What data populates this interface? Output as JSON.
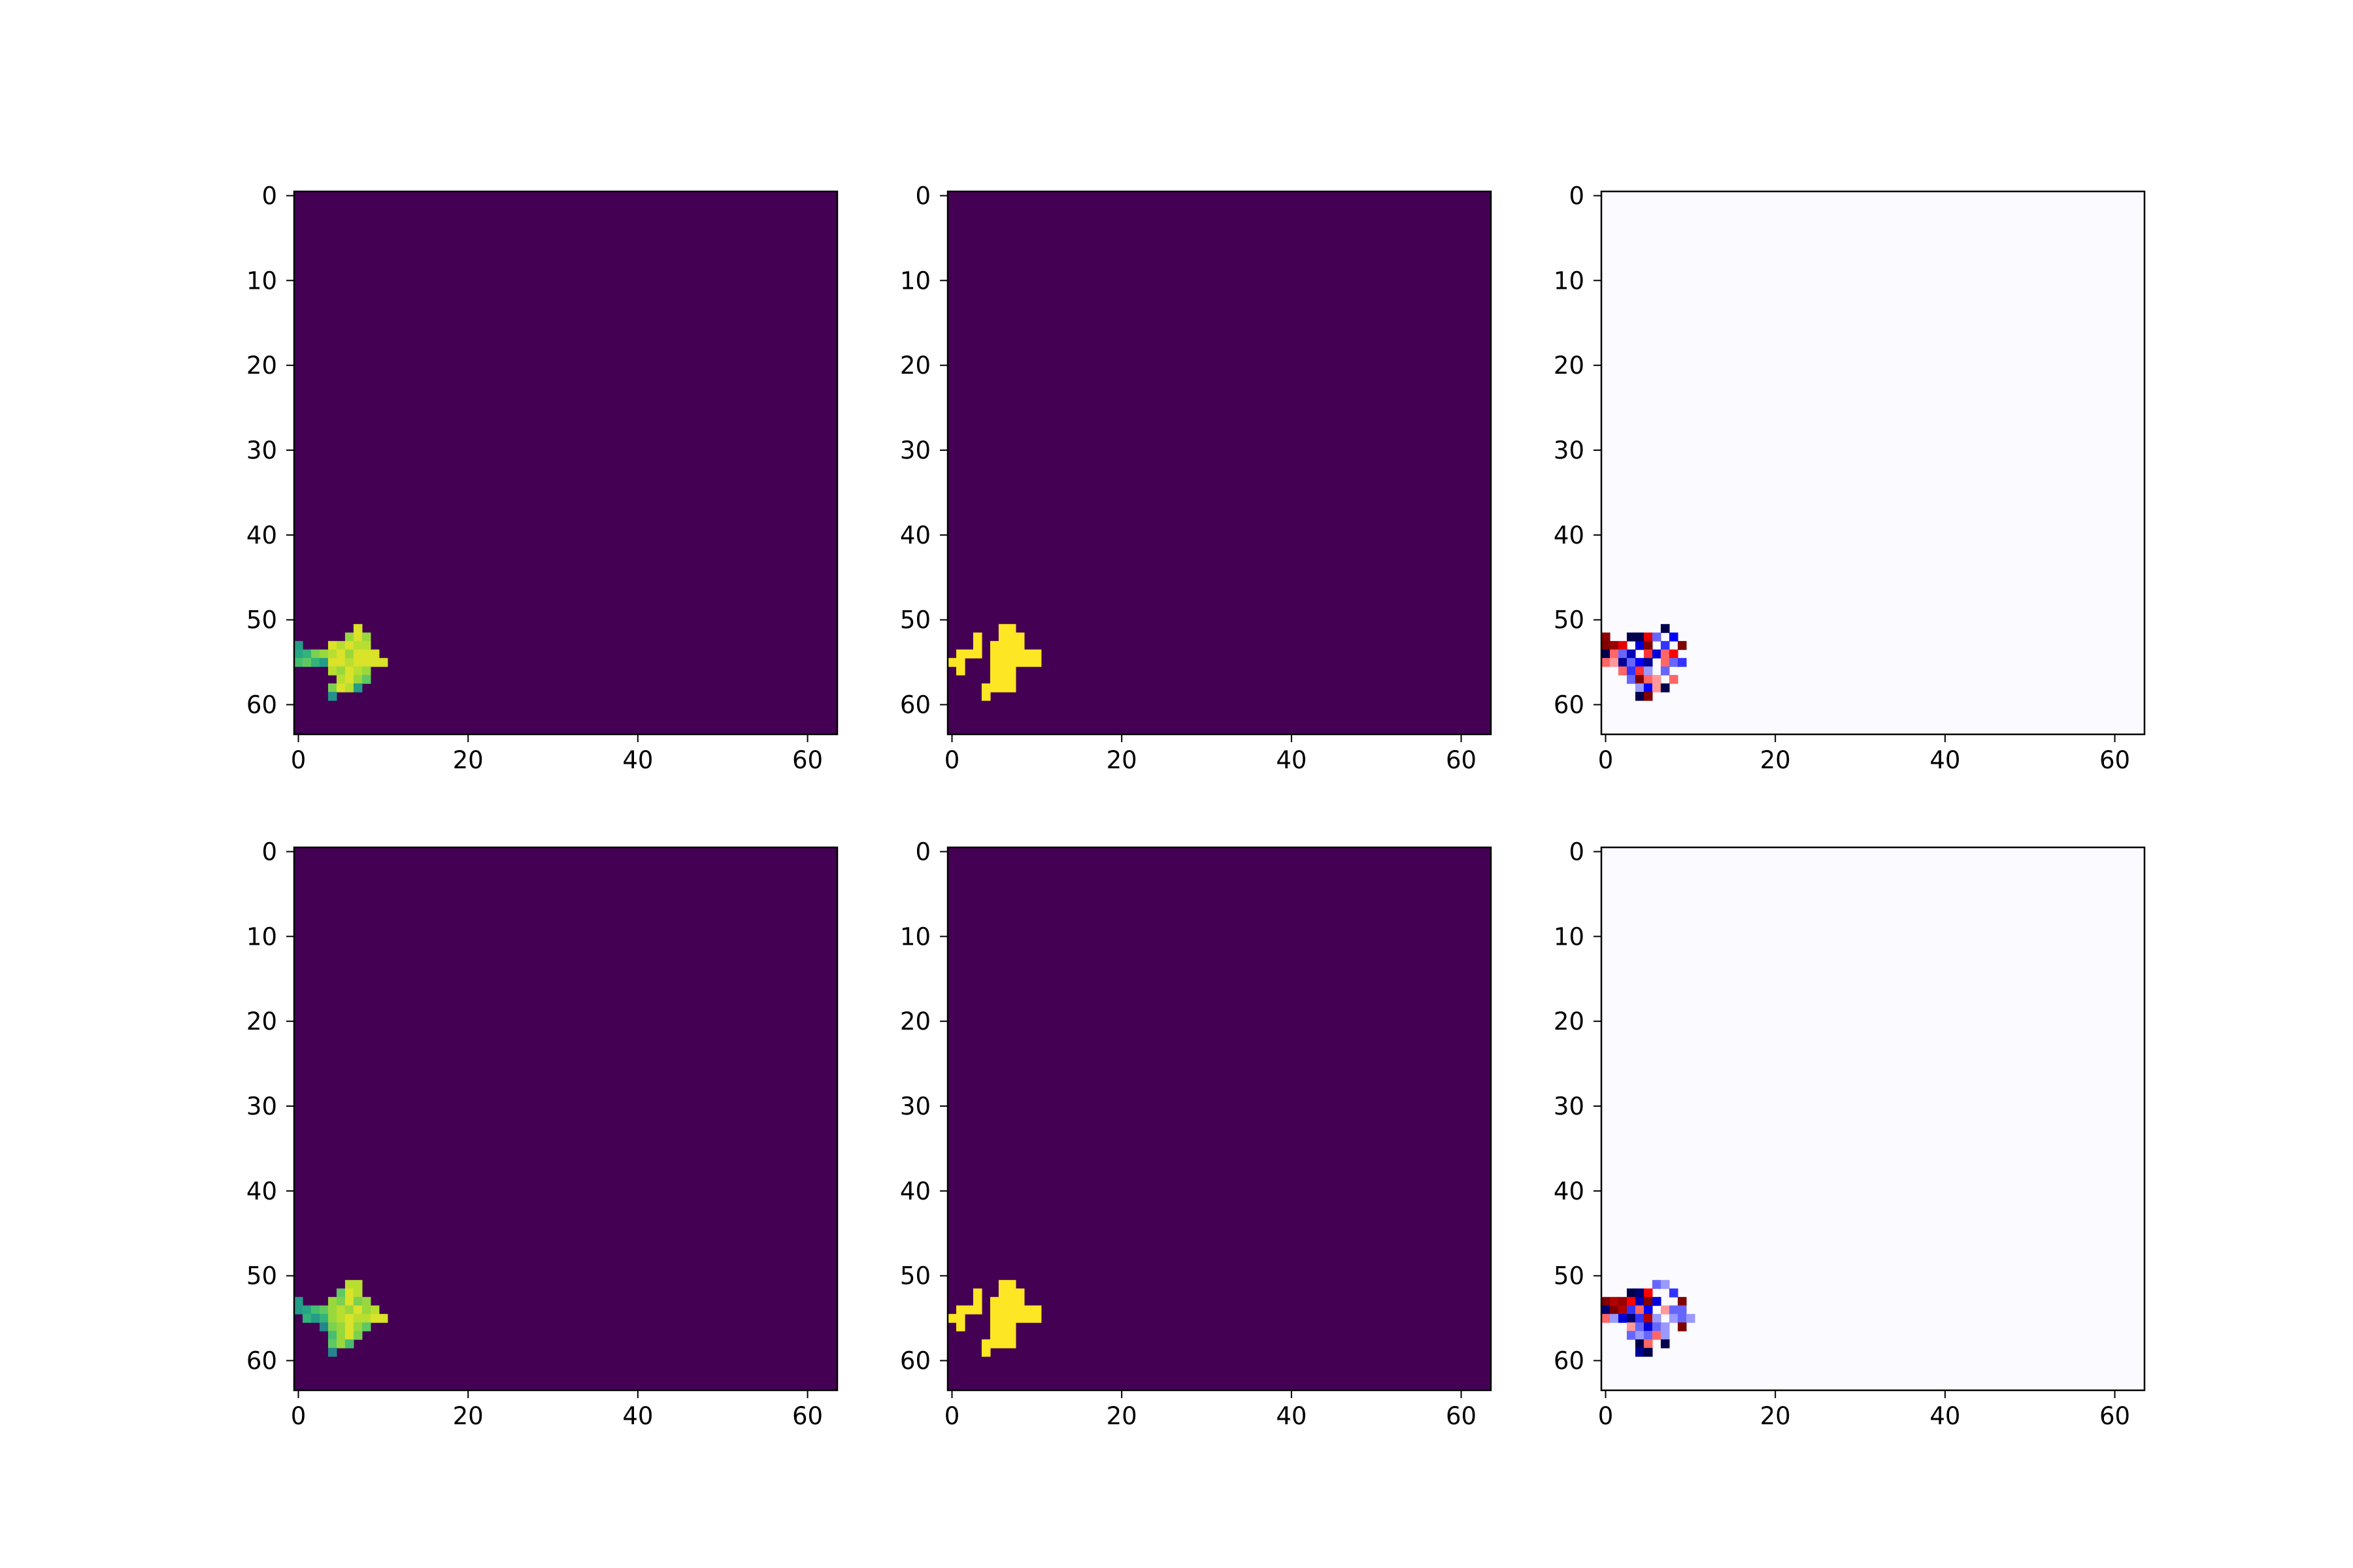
{
  "figure": {
    "rows": 2,
    "cols": 3,
    "background": "#ffffff"
  },
  "chart_data": [
    {
      "type": "heatmap",
      "panel": "row1-col1",
      "colormap": "viridis",
      "grid_size": [
        64,
        64
      ],
      "xlim": [
        -0.5,
        63.5
      ],
      "ylim": [
        63.5,
        -0.5
      ],
      "xticks": [
        "0",
        "20",
        "40",
        "60"
      ],
      "yticks": [
        "0",
        "10",
        "20",
        "30",
        "40",
        "50",
        "60"
      ],
      "background_value": 0,
      "cells": [
        [
          51,
          7,
          0.95
        ],
        [
          52,
          6,
          0.85
        ],
        [
          52,
          7,
          0.95
        ],
        [
          52,
          8,
          0.85
        ],
        [
          53,
          0,
          0.55
        ],
        [
          53,
          4,
          0.95
        ],
        [
          53,
          5,
          0.9
        ],
        [
          53,
          6,
          0.95
        ],
        [
          53,
          7,
          0.9
        ],
        [
          53,
          8,
          0.9
        ],
        [
          54,
          0,
          0.6
        ],
        [
          54,
          1,
          0.65
        ],
        [
          54,
          2,
          0.8
        ],
        [
          54,
          3,
          0.85
        ],
        [
          54,
          4,
          0.9
        ],
        [
          54,
          5,
          0.95
        ],
        [
          54,
          6,
          0.85
        ],
        [
          54,
          7,
          0.95
        ],
        [
          54,
          8,
          0.95
        ],
        [
          54,
          9,
          0.95
        ],
        [
          55,
          0,
          0.7
        ],
        [
          55,
          1,
          0.75
        ],
        [
          55,
          2,
          0.65
        ],
        [
          55,
          3,
          0.55
        ],
        [
          55,
          4,
          0.95
        ],
        [
          55,
          5,
          0.95
        ],
        [
          55,
          6,
          0.9
        ],
        [
          55,
          7,
          0.95
        ],
        [
          55,
          8,
          0.95
        ],
        [
          55,
          9,
          0.95
        ],
        [
          55,
          10,
          0.95
        ],
        [
          56,
          4,
          0.9
        ],
        [
          56,
          5,
          0.85
        ],
        [
          56,
          6,
          0.95
        ],
        [
          56,
          7,
          0.9
        ],
        [
          56,
          8,
          0.85
        ],
        [
          57,
          5,
          0.9
        ],
        [
          57,
          6,
          0.95
        ],
        [
          57,
          7,
          0.85
        ],
        [
          57,
          8,
          0.75
        ],
        [
          58,
          4,
          0.8
        ],
        [
          58,
          5,
          0.95
        ],
        [
          58,
          6,
          0.9
        ],
        [
          58,
          7,
          0.55
        ],
        [
          59,
          4,
          0.5
        ]
      ]
    },
    {
      "type": "heatmap",
      "panel": "row1-col2",
      "colormap": "viridis",
      "grid_size": [
        64,
        64
      ],
      "xlim": [
        -0.5,
        63.5
      ],
      "ylim": [
        63.5,
        -0.5
      ],
      "xticks": [
        "0",
        "20",
        "40",
        "60"
      ],
      "yticks": [
        "0",
        "10",
        "20",
        "30",
        "40",
        "50",
        "60"
      ],
      "background_value": 0,
      "cells": [
        [
          51,
          6,
          1
        ],
        [
          51,
          7,
          1
        ],
        [
          52,
          3,
          1
        ],
        [
          52,
          6,
          1
        ],
        [
          52,
          7,
          1
        ],
        [
          52,
          8,
          1
        ],
        [
          53,
          3,
          1
        ],
        [
          53,
          5,
          1
        ],
        [
          53,
          6,
          1
        ],
        [
          53,
          7,
          1
        ],
        [
          53,
          8,
          1
        ],
        [
          54,
          1,
          1
        ],
        [
          54,
          2,
          1
        ],
        [
          54,
          3,
          1
        ],
        [
          54,
          5,
          1
        ],
        [
          54,
          6,
          1
        ],
        [
          54,
          7,
          1
        ],
        [
          54,
          8,
          1
        ],
        [
          54,
          9,
          1
        ],
        [
          54,
          10,
          1
        ],
        [
          55,
          0,
          1
        ],
        [
          55,
          1,
          1
        ],
        [
          55,
          5,
          1
        ],
        [
          55,
          6,
          1
        ],
        [
          55,
          7,
          1
        ],
        [
          55,
          8,
          1
        ],
        [
          55,
          9,
          1
        ],
        [
          55,
          10,
          1
        ],
        [
          56,
          1,
          1
        ],
        [
          56,
          5,
          1
        ],
        [
          56,
          6,
          1
        ],
        [
          56,
          7,
          1
        ],
        [
          57,
          5,
          1
        ],
        [
          57,
          6,
          1
        ],
        [
          57,
          7,
          1
        ],
        [
          58,
          4,
          1
        ],
        [
          58,
          5,
          1
        ],
        [
          58,
          6,
          1
        ],
        [
          58,
          7,
          1
        ],
        [
          59,
          4,
          1
        ]
      ]
    },
    {
      "type": "heatmap",
      "panel": "row1-col3",
      "colormap": "seismic",
      "grid_size": [
        64,
        64
      ],
      "xlim": [
        -0.5,
        63.5
      ],
      "ylim": [
        63.5,
        -0.5
      ],
      "xticks": [
        "0",
        "20",
        "40",
        "60"
      ],
      "yticks": [
        "0",
        "10",
        "20",
        "30",
        "40",
        "50",
        "60"
      ],
      "background_value": -0.01,
      "cells": [
        [
          51,
          7,
          -1
        ],
        [
          52,
          0,
          0.95
        ],
        [
          52,
          3,
          -1
        ],
        [
          52,
          4,
          -1
        ],
        [
          52,
          5,
          0.6
        ],
        [
          52,
          6,
          -0.3
        ],
        [
          52,
          8,
          -0.5
        ],
        [
          53,
          0,
          1
        ],
        [
          53,
          1,
          0.9
        ],
        [
          53,
          2,
          0.6
        ],
        [
          53,
          4,
          -0.6
        ],
        [
          53,
          5,
          1
        ],
        [
          53,
          7,
          -0.4
        ],
        [
          53,
          9,
          1
        ],
        [
          54,
          0,
          -1
        ],
        [
          54,
          1,
          0.3
        ],
        [
          54,
          2,
          -0.3
        ],
        [
          54,
          3,
          -0.7
        ],
        [
          54,
          5,
          0.4
        ],
        [
          54,
          6,
          -0.6
        ],
        [
          54,
          7,
          0.3
        ],
        [
          54,
          8,
          0.5
        ],
        [
          55,
          0,
          0.3
        ],
        [
          55,
          1,
          0.2
        ],
        [
          55,
          2,
          -0.8
        ],
        [
          55,
          3,
          -0.3
        ],
        [
          55,
          4,
          -0.5
        ],
        [
          55,
          5,
          -0.8
        ],
        [
          55,
          7,
          0.3
        ],
        [
          55,
          8,
          -0.3
        ],
        [
          55,
          9,
          -0.4
        ],
        [
          56,
          2,
          0.3
        ],
        [
          56,
          3,
          -0.4
        ],
        [
          56,
          4,
          0.4
        ],
        [
          56,
          5,
          -0.2
        ],
        [
          56,
          7,
          -0.3
        ],
        [
          57,
          3,
          -0.3
        ],
        [
          57,
          4,
          1
        ],
        [
          57,
          5,
          0.3
        ],
        [
          57,
          6,
          0.2
        ],
        [
          57,
          8,
          0.3
        ],
        [
          58,
          4,
          -0.2
        ],
        [
          58,
          5,
          -0.5
        ],
        [
          58,
          6,
          0.2
        ],
        [
          58,
          7,
          -1
        ],
        [
          59,
          4,
          -1
        ],
        [
          59,
          5,
          1
        ]
      ]
    },
    {
      "type": "heatmap",
      "panel": "row2-col1",
      "colormap": "viridis",
      "grid_size": [
        64,
        64
      ],
      "xlim": [
        -0.5,
        63.5
      ],
      "ylim": [
        63.5,
        -0.5
      ],
      "xticks": [
        "0",
        "20",
        "40",
        "60"
      ],
      "yticks": [
        "0",
        "10",
        "20",
        "30",
        "40",
        "50",
        "60"
      ],
      "background_value": 0,
      "cells": [
        [
          51,
          6,
          0.9
        ],
        [
          51,
          7,
          0.9
        ],
        [
          52,
          5,
          0.75
        ],
        [
          52,
          6,
          0.95
        ],
        [
          52,
          7,
          0.9
        ],
        [
          53,
          0,
          0.55
        ],
        [
          53,
          4,
          0.85
        ],
        [
          53,
          5,
          0.8
        ],
        [
          53,
          6,
          0.95
        ],
        [
          53,
          7,
          0.8
        ],
        [
          53,
          8,
          0.85
        ],
        [
          54,
          0,
          0.55
        ],
        [
          54,
          1,
          0.6
        ],
        [
          54,
          2,
          0.7
        ],
        [
          54,
          3,
          0.75
        ],
        [
          54,
          4,
          0.85
        ],
        [
          54,
          5,
          0.9
        ],
        [
          54,
          6,
          0.85
        ],
        [
          54,
          7,
          0.95
        ],
        [
          54,
          8,
          0.85
        ],
        [
          54,
          9,
          0.9
        ],
        [
          55,
          1,
          0.65
        ],
        [
          55,
          2,
          0.55
        ],
        [
          55,
          3,
          0.65
        ],
        [
          55,
          4,
          0.85
        ],
        [
          55,
          5,
          0.9
        ],
        [
          55,
          6,
          0.95
        ],
        [
          55,
          7,
          0.9
        ],
        [
          55,
          8,
          0.9
        ],
        [
          55,
          9,
          0.95
        ],
        [
          55,
          10,
          0.95
        ],
        [
          56,
          3,
          0.45
        ],
        [
          56,
          4,
          0.8
        ],
        [
          56,
          5,
          0.85
        ],
        [
          56,
          6,
          0.95
        ],
        [
          56,
          7,
          0.85
        ],
        [
          56,
          8,
          0.75
        ],
        [
          57,
          4,
          0.7
        ],
        [
          57,
          5,
          0.85
        ],
        [
          57,
          6,
          0.95
        ],
        [
          57,
          7,
          0.8
        ],
        [
          58,
          4,
          0.75
        ],
        [
          58,
          5,
          0.85
        ],
        [
          58,
          6,
          0.7
        ],
        [
          59,
          4,
          0.45
        ]
      ]
    },
    {
      "type": "heatmap",
      "panel": "row2-col2",
      "colormap": "viridis",
      "grid_size": [
        64,
        64
      ],
      "xlim": [
        -0.5,
        63.5
      ],
      "ylim": [
        63.5,
        -0.5
      ],
      "xticks": [
        "0",
        "20",
        "40",
        "60"
      ],
      "yticks": [
        "0",
        "10",
        "20",
        "30",
        "40",
        "50",
        "60"
      ],
      "background_value": 0,
      "cells": [
        [
          51,
          6,
          1
        ],
        [
          51,
          7,
          1
        ],
        [
          52,
          3,
          1
        ],
        [
          52,
          6,
          1
        ],
        [
          52,
          7,
          1
        ],
        [
          52,
          8,
          1
        ],
        [
          53,
          3,
          1
        ],
        [
          53,
          5,
          1
        ],
        [
          53,
          6,
          1
        ],
        [
          53,
          7,
          1
        ],
        [
          53,
          8,
          1
        ],
        [
          54,
          1,
          1
        ],
        [
          54,
          2,
          1
        ],
        [
          54,
          3,
          1
        ],
        [
          54,
          5,
          1
        ],
        [
          54,
          6,
          1
        ],
        [
          54,
          7,
          1
        ],
        [
          54,
          8,
          1
        ],
        [
          54,
          9,
          1
        ],
        [
          54,
          10,
          1
        ],
        [
          55,
          0,
          1
        ],
        [
          55,
          1,
          1
        ],
        [
          55,
          5,
          1
        ],
        [
          55,
          6,
          1
        ],
        [
          55,
          7,
          1
        ],
        [
          55,
          8,
          1
        ],
        [
          55,
          9,
          1
        ],
        [
          55,
          10,
          1
        ],
        [
          56,
          1,
          1
        ],
        [
          56,
          5,
          1
        ],
        [
          56,
          6,
          1
        ],
        [
          56,
          7,
          1
        ],
        [
          57,
          5,
          1
        ],
        [
          57,
          6,
          1
        ],
        [
          57,
          7,
          1
        ],
        [
          58,
          4,
          1
        ],
        [
          58,
          5,
          1
        ],
        [
          58,
          6,
          1
        ],
        [
          58,
          7,
          1
        ],
        [
          59,
          4,
          1
        ]
      ]
    },
    {
      "type": "heatmap",
      "panel": "row2-col3",
      "colormap": "seismic",
      "grid_size": [
        64,
        64
      ],
      "xlim": [
        -0.5,
        63.5
      ],
      "ylim": [
        63.5,
        -0.5
      ],
      "xticks": [
        "0",
        "20",
        "40",
        "60"
      ],
      "yticks": [
        "0",
        "10",
        "20",
        "30",
        "40",
        "50",
        "60"
      ],
      "background_value": -0.01,
      "cells": [
        [
          51,
          6,
          -0.3
        ],
        [
          51,
          7,
          -0.2
        ],
        [
          52,
          3,
          -1
        ],
        [
          52,
          4,
          -0.9
        ],
        [
          52,
          5,
          0.5
        ],
        [
          52,
          8,
          -0.4
        ],
        [
          53,
          0,
          1
        ],
        [
          53,
          1,
          0.8
        ],
        [
          53,
          2,
          0.9
        ],
        [
          53,
          3,
          0.5
        ],
        [
          53,
          4,
          -0.7
        ],
        [
          53,
          5,
          1
        ],
        [
          53,
          6,
          -0.6
        ],
        [
          53,
          9,
          1
        ],
        [
          54,
          0,
          -0.9
        ],
        [
          54,
          1,
          1
        ],
        [
          54,
          2,
          0.8
        ],
        [
          54,
          3,
          -0.4
        ],
        [
          54,
          4,
          0.3
        ],
        [
          54,
          5,
          -0.5
        ],
        [
          54,
          7,
          0.2
        ],
        [
          54,
          8,
          -0.3
        ],
        [
          54,
          9,
          -0.3
        ],
        [
          55,
          0,
          0.3
        ],
        [
          55,
          1,
          -0.2
        ],
        [
          55,
          2,
          -0.6
        ],
        [
          55,
          3,
          -0.9
        ],
        [
          55,
          4,
          -0.4
        ],
        [
          55,
          5,
          0.8
        ],
        [
          55,
          6,
          -0.2
        ],
        [
          55,
          8,
          -0.2
        ],
        [
          55,
          9,
          -0.3
        ],
        [
          55,
          10,
          -0.2
        ],
        [
          56,
          3,
          0.2
        ],
        [
          56,
          4,
          -0.3
        ],
        [
          56,
          5,
          -0.6
        ],
        [
          56,
          6,
          -0.3
        ],
        [
          56,
          7,
          -0.2
        ],
        [
          56,
          9,
          1
        ],
        [
          57,
          3,
          -0.3
        ],
        [
          57,
          4,
          -0.2
        ],
        [
          57,
          5,
          -0.3
        ],
        [
          57,
          6,
          0.3
        ],
        [
          57,
          7,
          -0.2
        ],
        [
          58,
          4,
          -1
        ],
        [
          58,
          5,
          0.3
        ],
        [
          58,
          7,
          -1
        ],
        [
          59,
          4,
          -0.8
        ],
        [
          59,
          5,
          -1
        ]
      ]
    }
  ]
}
